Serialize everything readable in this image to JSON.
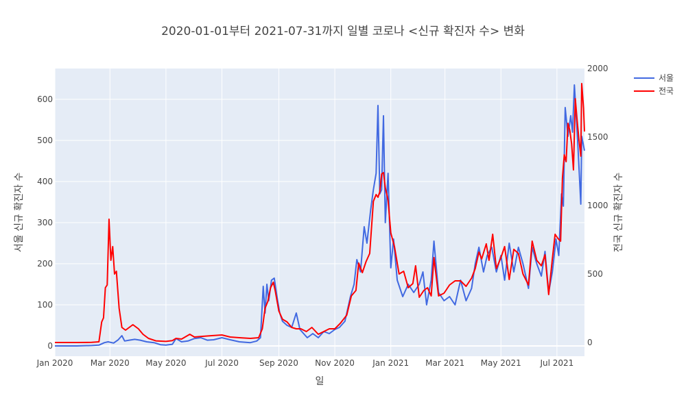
{
  "chart_data": {
    "type": "line",
    "title": "2020-01-01부터 2021-07-31까지 일별 코로나 <신규 확진자 수> 변화",
    "xlabel": "일",
    "ylabel_left": "서울 신규 확진자 수",
    "ylabel_right": "전국 신규 확진자 수",
    "x_range": [
      "2020-01-01",
      "2021-07-31"
    ],
    "x_tick_dates": [
      "2020-01-01",
      "2020-03-01",
      "2020-05-01",
      "2020-07-01",
      "2020-09-01",
      "2020-11-01",
      "2021-01-01",
      "2021-03-01",
      "2021-05-01",
      "2021-07-01"
    ],
    "x_tick_labels": [
      "Jan 2020",
      "Mar 2020",
      "May 2020",
      "Jul 2020",
      "Sep 2020",
      "Nov 2020",
      "Jan 2021",
      "Mar 2021",
      "May 2021",
      "Jul 2021"
    ],
    "y_left_ticks": [
      0,
      100,
      200,
      300,
      400,
      500,
      600
    ],
    "y_left_range": [
      -25,
      675
    ],
    "y_right_ticks": [
      0,
      500,
      1000,
      1500,
      2000
    ],
    "y_right_range": [
      -100,
      2000
    ],
    "grid": true,
    "legend_position": "top-right",
    "series": [
      {
        "name": "서울",
        "axis": "left",
        "color": "#4169e1",
        "points": [
          [
            "2020-01-01",
            0
          ],
          [
            "2020-01-25",
            0
          ],
          [
            "2020-02-10",
            1
          ],
          [
            "2020-02-18",
            2
          ],
          [
            "2020-02-24",
            8
          ],
          [
            "2020-02-28",
            10
          ],
          [
            "2020-03-05",
            7
          ],
          [
            "2020-03-10",
            15
          ],
          [
            "2020-03-14",
            25
          ],
          [
            "2020-03-17",
            12
          ],
          [
            "2020-03-22",
            14
          ],
          [
            "2020-03-28",
            16
          ],
          [
            "2020-04-03",
            14
          ],
          [
            "2020-04-10",
            10
          ],
          [
            "2020-04-18",
            8
          ],
          [
            "2020-04-25",
            3
          ],
          [
            "2020-05-01",
            2
          ],
          [
            "2020-05-08",
            4
          ],
          [
            "2020-05-12",
            18
          ],
          [
            "2020-05-18",
            10
          ],
          [
            "2020-05-25",
            12
          ],
          [
            "2020-06-01",
            18
          ],
          [
            "2020-06-08",
            20
          ],
          [
            "2020-06-15",
            14
          ],
          [
            "2020-06-22",
            15
          ],
          [
            "2020-07-01",
            20
          ],
          [
            "2020-07-10",
            15
          ],
          [
            "2020-07-20",
            10
          ],
          [
            "2020-08-01",
            8
          ],
          [
            "2020-08-08",
            12
          ],
          [
            "2020-08-12",
            20
          ],
          [
            "2020-08-15",
            145
          ],
          [
            "2020-08-17",
            80
          ],
          [
            "2020-08-19",
            150
          ],
          [
            "2020-08-21",
            110
          ],
          [
            "2020-08-24",
            160
          ],
          [
            "2020-08-27",
            165
          ],
          [
            "2020-08-30",
            120
          ],
          [
            "2020-09-02",
            80
          ],
          [
            "2020-09-05",
            60
          ],
          [
            "2020-09-10",
            50
          ],
          [
            "2020-09-15",
            45
          ],
          [
            "2020-09-20",
            80
          ],
          [
            "2020-09-24",
            40
          ],
          [
            "2020-09-28",
            30
          ],
          [
            "2020-10-02",
            20
          ],
          [
            "2020-10-08",
            30
          ],
          [
            "2020-10-14",
            20
          ],
          [
            "2020-10-20",
            35
          ],
          [
            "2020-10-26",
            30
          ],
          [
            "2020-11-01",
            40
          ],
          [
            "2020-11-06",
            45
          ],
          [
            "2020-11-12",
            60
          ],
          [
            "2020-11-18",
            120
          ],
          [
            "2020-11-22",
            150
          ],
          [
            "2020-11-25",
            210
          ],
          [
            "2020-11-29",
            180
          ],
          [
            "2020-12-03",
            290
          ],
          [
            "2020-12-06",
            250
          ],
          [
            "2020-12-10",
            330
          ],
          [
            "2020-12-13",
            380
          ],
          [
            "2020-12-16",
            420
          ],
          [
            "2020-12-18",
            585
          ],
          [
            "2020-12-20",
            370
          ],
          [
            "2020-12-22",
            380
          ],
          [
            "2020-12-24",
            560
          ],
          [
            "2020-12-26",
            300
          ],
          [
            "2020-12-29",
            420
          ],
          [
            "2021-01-01",
            190
          ],
          [
            "2021-01-04",
            260
          ],
          [
            "2021-01-08",
            160
          ],
          [
            "2021-01-14",
            120
          ],
          [
            "2021-01-20",
            150
          ],
          [
            "2021-01-26",
            130
          ],
          [
            "2021-02-01",
            150
          ],
          [
            "2021-02-05",
            180
          ],
          [
            "2021-02-09",
            100
          ],
          [
            "2021-02-14",
            160
          ],
          [
            "2021-02-17",
            255
          ],
          [
            "2021-02-22",
            130
          ],
          [
            "2021-02-28",
            110
          ],
          [
            "2021-03-06",
            120
          ],
          [
            "2021-03-12",
            100
          ],
          [
            "2021-03-18",
            160
          ],
          [
            "2021-03-24",
            110
          ],
          [
            "2021-03-30",
            140
          ],
          [
            "2021-04-03",
            200
          ],
          [
            "2021-04-07",
            240
          ],
          [
            "2021-04-12",
            180
          ],
          [
            "2021-04-16",
            220
          ],
          [
            "2021-04-21",
            240
          ],
          [
            "2021-04-26",
            180
          ],
          [
            "2021-05-01",
            220
          ],
          [
            "2021-05-05",
            160
          ],
          [
            "2021-05-10",
            250
          ],
          [
            "2021-05-15",
            180
          ],
          [
            "2021-05-20",
            240
          ],
          [
            "2021-05-25",
            200
          ],
          [
            "2021-05-31",
            140
          ],
          [
            "2021-06-04",
            240
          ],
          [
            "2021-06-09",
            200
          ],
          [
            "2021-06-14",
            170
          ],
          [
            "2021-06-18",
            230
          ],
          [
            "2021-06-22",
            130
          ],
          [
            "2021-06-26",
            180
          ],
          [
            "2021-06-30",
            260
          ],
          [
            "2021-07-03",
            220
          ],
          [
            "2021-07-06",
            370
          ],
          [
            "2021-07-08",
            340
          ],
          [
            "2021-07-10",
            580
          ],
          [
            "2021-07-13",
            510
          ],
          [
            "2021-07-16",
            560
          ],
          [
            "2021-07-18",
            520
          ],
          [
            "2021-07-20",
            635
          ],
          [
            "2021-07-22",
            560
          ],
          [
            "2021-07-24",
            480
          ],
          [
            "2021-07-27",
            345
          ],
          [
            "2021-07-28",
            510
          ],
          [
            "2021-07-31",
            475
          ]
        ]
      },
      {
        "name": "전국",
        "axis": "right",
        "color": "#ff0000",
        "points": [
          [
            "2020-01-01",
            0
          ],
          [
            "2020-01-25",
            0
          ],
          [
            "2020-02-10",
            1
          ],
          [
            "2020-02-18",
            5
          ],
          [
            "2020-02-21",
            150
          ],
          [
            "2020-02-23",
            180
          ],
          [
            "2020-02-25",
            400
          ],
          [
            "2020-02-27",
            420
          ],
          [
            "2020-02-29",
            900
          ],
          [
            "2020-03-02",
            600
          ],
          [
            "2020-03-04",
            700
          ],
          [
            "2020-03-06",
            500
          ],
          [
            "2020-03-08",
            520
          ],
          [
            "2020-03-11",
            250
          ],
          [
            "2020-03-14",
            110
          ],
          [
            "2020-03-18",
            90
          ],
          [
            "2020-03-22",
            110
          ],
          [
            "2020-03-26",
            130
          ],
          [
            "2020-04-01",
            100
          ],
          [
            "2020-04-06",
            60
          ],
          [
            "2020-04-12",
            30
          ],
          [
            "2020-04-20",
            12
          ],
          [
            "2020-05-01",
            8
          ],
          [
            "2020-05-08",
            14
          ],
          [
            "2020-05-12",
            30
          ],
          [
            "2020-05-18",
            25
          ],
          [
            "2020-05-27",
            60
          ],
          [
            "2020-06-01",
            40
          ],
          [
            "2020-06-10",
            45
          ],
          [
            "2020-06-20",
            50
          ],
          [
            "2020-07-01",
            55
          ],
          [
            "2020-07-10",
            40
          ],
          [
            "2020-07-20",
            35
          ],
          [
            "2020-08-01",
            30
          ],
          [
            "2020-08-10",
            35
          ],
          [
            "2020-08-14",
            100
          ],
          [
            "2020-08-17",
            250
          ],
          [
            "2020-08-20",
            300
          ],
          [
            "2020-08-23",
            400
          ],
          [
            "2020-08-26",
            440
          ],
          [
            "2020-08-28",
            380
          ],
          [
            "2020-09-01",
            230
          ],
          [
            "2020-09-05",
            170
          ],
          [
            "2020-09-10",
            150
          ],
          [
            "2020-09-15",
            110
          ],
          [
            "2020-09-20",
            100
          ],
          [
            "2020-09-25",
            100
          ],
          [
            "2020-10-01",
            80
          ],
          [
            "2020-10-07",
            110
          ],
          [
            "2020-10-14",
            60
          ],
          [
            "2020-10-20",
            80
          ],
          [
            "2020-10-26",
            100
          ],
          [
            "2020-11-01",
            100
          ],
          [
            "2020-11-07",
            140
          ],
          [
            "2020-11-14",
            200
          ],
          [
            "2020-11-19",
            340
          ],
          [
            "2020-11-24",
            380
          ],
          [
            "2020-11-27",
            580
          ],
          [
            "2020-12-01",
            510
          ],
          [
            "2020-12-05",
            590
          ],
          [
            "2020-12-09",
            650
          ],
          [
            "2020-12-13",
            1030
          ],
          [
            "2020-12-16",
            1080
          ],
          [
            "2020-12-18",
            1060
          ],
          [
            "2020-12-20",
            1100
          ],
          [
            "2020-12-22",
            1230
          ],
          [
            "2020-12-24",
            1240
          ],
          [
            "2020-12-26",
            1130
          ],
          [
            "2020-12-29",
            1040
          ],
          [
            "2021-01-01",
            800
          ],
          [
            "2021-01-05",
            700
          ],
          [
            "2021-01-10",
            500
          ],
          [
            "2021-01-15",
            520
          ],
          [
            "2021-01-20",
            400
          ],
          [
            "2021-01-25",
            430
          ],
          [
            "2021-01-28",
            560
          ],
          [
            "2021-02-01",
            330
          ],
          [
            "2021-02-06",
            380
          ],
          [
            "2021-02-10",
            400
          ],
          [
            "2021-02-14",
            340
          ],
          [
            "2021-02-17",
            620
          ],
          [
            "2021-02-22",
            340
          ],
          [
            "2021-02-28",
            360
          ],
          [
            "2021-03-06",
            420
          ],
          [
            "2021-03-12",
            450
          ],
          [
            "2021-03-18",
            450
          ],
          [
            "2021-03-24",
            410
          ],
          [
            "2021-03-30",
            470
          ],
          [
            "2021-04-03",
            540
          ],
          [
            "2021-04-07",
            660
          ],
          [
            "2021-04-10",
            610
          ],
          [
            "2021-04-15",
            720
          ],
          [
            "2021-04-18",
            600
          ],
          [
            "2021-04-22",
            790
          ],
          [
            "2021-04-26",
            540
          ],
          [
            "2021-05-01",
            620
          ],
          [
            "2021-05-05",
            700
          ],
          [
            "2021-05-10",
            460
          ],
          [
            "2021-05-15",
            680
          ],
          [
            "2021-05-20",
            650
          ],
          [
            "2021-05-25",
            500
          ],
          [
            "2021-05-31",
            420
          ],
          [
            "2021-06-04",
            740
          ],
          [
            "2021-06-09",
            600
          ],
          [
            "2021-06-14",
            560
          ],
          [
            "2021-06-18",
            640
          ],
          [
            "2021-06-22",
            350
          ],
          [
            "2021-06-26",
            610
          ],
          [
            "2021-06-29",
            790
          ],
          [
            "2021-07-02",
            760
          ],
          [
            "2021-07-05",
            740
          ],
          [
            "2021-07-07",
            1200
          ],
          [
            "2021-07-09",
            1370
          ],
          [
            "2021-07-11",
            1320
          ],
          [
            "2021-07-13",
            1600
          ],
          [
            "2021-07-15",
            1550
          ],
          [
            "2021-07-17",
            1450
          ],
          [
            "2021-07-19",
            1260
          ],
          [
            "2021-07-21",
            1780
          ],
          [
            "2021-07-23",
            1620
          ],
          [
            "2021-07-25",
            1480
          ],
          [
            "2021-07-27",
            1360
          ],
          [
            "2021-07-28",
            1890
          ],
          [
            "2021-07-30",
            1710
          ],
          [
            "2021-07-31",
            1540
          ]
        ]
      }
    ]
  }
}
